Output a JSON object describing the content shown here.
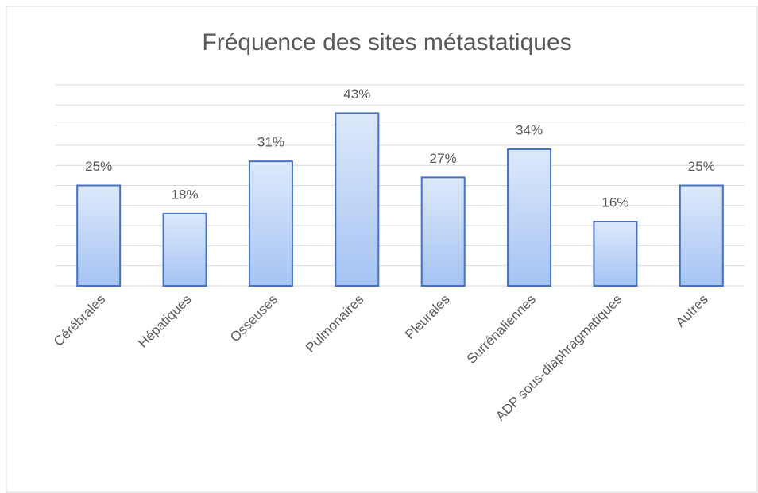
{
  "chart_data": {
    "type": "bar",
    "title": "Fréquence des sites métastatiques",
    "categories": [
      "Cérébrales",
      "Hépatiques",
      "Osseuses",
      "Pulmonaires",
      "Pleurales",
      "Surrénaliennes",
      "ADP sous-diaphragmatiques",
      "Autres"
    ],
    "values": [
      25,
      18,
      31,
      43,
      27,
      34,
      16,
      25
    ],
    "value_labels": [
      "25%",
      "18%",
      "31%",
      "43%",
      "27%",
      "34%",
      "16%",
      "25%"
    ],
    "color": "#4472c4",
    "ylim": [
      0,
      50
    ],
    "yticks": [
      0,
      5,
      10,
      15,
      20,
      25,
      30,
      35,
      40,
      45,
      50
    ],
    "ytick_labels": false,
    "grid": true
  }
}
